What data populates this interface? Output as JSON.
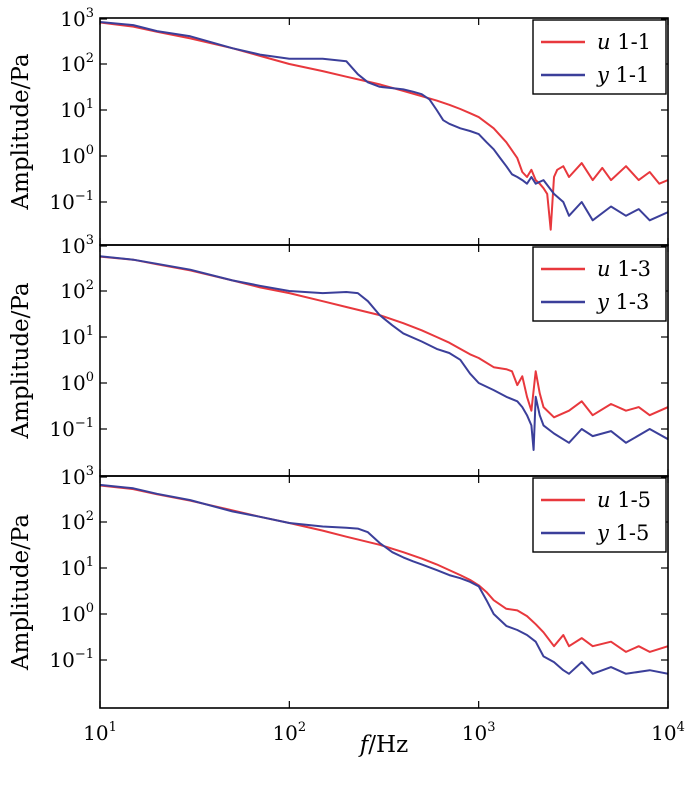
{
  "chart_data": [
    {
      "type": "line",
      "ylabel": "Amplitude/Pa",
      "xscale": "log",
      "yscale": "log",
      "xlim": [
        10,
        10000
      ],
      "ylim": [
        0.03,
        1000
      ],
      "legend_placement": "top-right",
      "series": [
        {
          "name": "u 1-1",
          "prefix": "u",
          "label": "1-1",
          "color": "#e8383d",
          "x": [
            10,
            15,
            20,
            30,
            50,
            70,
            100,
            150,
            200,
            250,
            300,
            400,
            500,
            600,
            700,
            800,
            900,
            1000,
            1200,
            1400,
            1600,
            1700,
            1800,
            1900,
            2000,
            2100,
            2200,
            2300,
            2400,
            2500,
            2600,
            2800,
            3000,
            3500,
            4000,
            4500,
            5000,
            6000,
            7000,
            8000,
            9000,
            10000
          ],
          "y": [
            800,
            650,
            500,
            360,
            220,
            150,
            100,
            70,
            53,
            43,
            36,
            26,
            20,
            16,
            13,
            10.5,
            8.5,
            7,
            4,
            2,
            0.9,
            0.45,
            0.35,
            0.5,
            0.3,
            0.25,
            0.2,
            0.15,
            0.025,
            0.35,
            0.5,
            0.6,
            0.35,
            0.7,
            0.3,
            0.55,
            0.3,
            0.6,
            0.3,
            0.45,
            0.25,
            0.3
          ]
        },
        {
          "name": "y 1-1",
          "prefix": "y",
          "label": "1-1",
          "color": "#3b3f9a",
          "x": [
            10,
            15,
            20,
            30,
            50,
            70,
            100,
            150,
            200,
            230,
            260,
            300,
            350,
            400,
            450,
            500,
            550,
            600,
            650,
            700,
            800,
            900,
            1000,
            1100,
            1200,
            1300,
            1400,
            1500,
            1600,
            1700,
            1800,
            1900,
            2000,
            2200,
            2500,
            2800,
            3000,
            3500,
            4000,
            5000,
            6000,
            7000,
            8000,
            10000
          ],
          "y": [
            820,
            700,
            520,
            400,
            220,
            160,
            130,
            130,
            115,
            60,
            40,
            32,
            30,
            28,
            25,
            22,
            17,
            10,
            6,
            5,
            4,
            3.5,
            3,
            2,
            1.4,
            0.9,
            0.6,
            0.4,
            0.35,
            0.3,
            0.25,
            0.35,
            0.25,
            0.3,
            0.15,
            0.1,
            0.05,
            0.1,
            0.04,
            0.08,
            0.05,
            0.07,
            0.04,
            0.06
          ]
        }
      ]
    },
    {
      "type": "line",
      "ylabel": "Amplitude/Pa",
      "xscale": "log",
      "yscale": "log",
      "xlim": [
        10,
        10000
      ],
      "ylim": [
        0.03,
        1000
      ],
      "legend_placement": "top-right",
      "series": [
        {
          "name": "u 1-3",
          "prefix": "u",
          "label": "1-3",
          "color": "#e8383d",
          "x": [
            10,
            15,
            20,
            30,
            50,
            70,
            100,
            150,
            200,
            300,
            400,
            500,
            600,
            700,
            800,
            900,
            1000,
            1200,
            1400,
            1500,
            1600,
            1700,
            1800,
            1900,
            2000,
            2100,
            2200,
            2500,
            3000,
            3500,
            4000,
            5000,
            6000,
            7000,
            8000,
            10000
          ],
          "y": [
            560,
            480,
            380,
            280,
            170,
            120,
            90,
            60,
            45,
            30,
            20,
            14,
            10,
            7.5,
            5.5,
            4.2,
            3.5,
            2.2,
            2,
            1.8,
            0.9,
            1.4,
            0.5,
            0.25,
            1.8,
            0.6,
            0.3,
            0.18,
            0.25,
            0.4,
            0.2,
            0.35,
            0.25,
            0.3,
            0.2,
            0.3
          ]
        },
        {
          "name": "y 1-3",
          "prefix": "y",
          "label": "1-3",
          "color": "#3b3f9a",
          "x": [
            10,
            15,
            20,
            30,
            50,
            70,
            100,
            150,
            200,
            230,
            260,
            300,
            350,
            400,
            500,
            600,
            700,
            800,
            900,
            1000,
            1200,
            1400,
            1600,
            1700,
            1800,
            1900,
            1950,
            2000,
            2100,
            2200,
            2500,
            3000,
            3500,
            4000,
            5000,
            6000,
            8000,
            10000
          ],
          "y": [
            570,
            480,
            390,
            290,
            170,
            130,
            100,
            90,
            95,
            90,
            60,
            30,
            18,
            12,
            8,
            5.5,
            4.5,
            3.2,
            1.6,
            1,
            0.7,
            0.5,
            0.4,
            0.3,
            0.2,
            0.12,
            0.035,
            0.5,
            0.2,
            0.12,
            0.08,
            0.05,
            0.1,
            0.07,
            0.09,
            0.05,
            0.1,
            0.06
          ]
        }
      ]
    },
    {
      "type": "line",
      "ylabel": "Amplitude/Pa",
      "xlabel": "f/Hz",
      "xscale": "log",
      "yscale": "log",
      "xlim": [
        10,
        10000
      ],
      "ylim": [
        0.03,
        1000
      ],
      "xticks": [
        "10^1",
        "10^2",
        "10^3",
        "10^4"
      ],
      "legend_placement": "top-right",
      "series": [
        {
          "name": "u 1-5",
          "prefix": "u",
          "label": "1-5",
          "color": "#e8383d",
          "x": [
            10,
            15,
            20,
            30,
            50,
            70,
            100,
            150,
            200,
            300,
            400,
            500,
            600,
            700,
            800,
            900,
            1000,
            1100,
            1200,
            1400,
            1600,
            1800,
            2000,
            2200,
            2500,
            2800,
            3000,
            3500,
            4000,
            5000,
            6000,
            7000,
            8000,
            10000
          ],
          "y": [
            620,
            520,
            400,
            290,
            180,
            130,
            95,
            65,
            48,
            32,
            22,
            16,
            12,
            9,
            7,
            5.5,
            4.2,
            3,
            2,
            1.3,
            1.2,
            0.9,
            0.6,
            0.4,
            0.2,
            0.35,
            0.2,
            0.3,
            0.2,
            0.25,
            0.15,
            0.2,
            0.15,
            0.2
          ]
        },
        {
          "name": "y 1-5",
          "prefix": "y",
          "label": "1-5",
          "color": "#3b3f9a",
          "x": [
            10,
            15,
            20,
            30,
            50,
            70,
            100,
            150,
            200,
            230,
            260,
            300,
            350,
            400,
            450,
            500,
            600,
            700,
            800,
            900,
            1000,
            1100,
            1200,
            1400,
            1600,
            1800,
            2000,
            2200,
            2500,
            2800,
            3000,
            3500,
            4000,
            5000,
            6000,
            8000,
            10000
          ],
          "y": [
            640,
            540,
            410,
            300,
            170,
            130,
            95,
            80,
            75,
            72,
            60,
            35,
            22,
            17,
            14,
            12,
            9,
            7,
            6,
            5,
            4,
            2,
            1,
            0.55,
            0.45,
            0.35,
            0.25,
            0.12,
            0.09,
            0.06,
            0.05,
            0.09,
            0.05,
            0.07,
            0.05,
            0.06,
            0.05
          ]
        }
      ]
    }
  ]
}
